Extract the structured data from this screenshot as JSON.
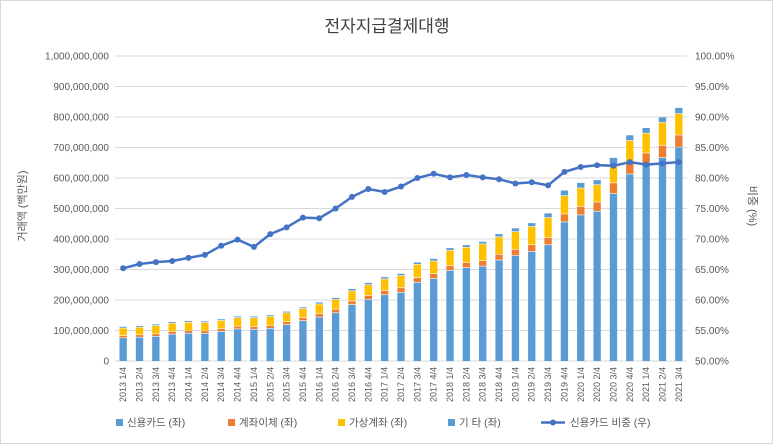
{
  "chart_data": {
    "type": "bar",
    "title": "전자지급결제대행",
    "ylabel": "거래액 (백만원)",
    "y2label": "비중 (%)",
    "ylim": [
      0,
      1000000000
    ],
    "y2lim": [
      50,
      100
    ],
    "grid": true,
    "legend_position": "bottom",
    "categories": [
      "2013 1/4",
      "2013 2/4",
      "2013 3/4",
      "2013 4/4",
      "2014 1/4",
      "2014 2/4",
      "2014 3/4",
      "2014 4/4",
      "2015 1/4",
      "2015 2/4",
      "2015 3/4",
      "2015 4/4",
      "2016 1/4",
      "2016 2/4",
      "2016 3/4",
      "2016 4/4",
      "2017 1/4",
      "2017 2/4",
      "2017 3/4",
      "2017 4/4",
      "2018 1/4",
      "2018 2/4",
      "2018 3/4",
      "2018 4/4",
      "2019 1/4",
      "2019 2/4",
      "2019 3/4",
      "2019 4/4",
      "2020 1/4",
      "2020 2/4",
      "2020 3/4",
      "2020 4/4",
      "2021 1/4",
      "2021 2/4",
      "2021 3/4"
    ],
    "series": [
      {
        "name": "신용카드 (좌)",
        "kind": "bar",
        "axis": "left",
        "color": "#5b9bd5",
        "values": [
          75000000,
          77000000,
          80000000,
          87000000,
          90000000,
          89000000,
          96000000,
          104000000,
          103000000,
          106000000,
          118000000,
          131000000,
          143000000,
          157000000,
          184000000,
          201000000,
          216000000,
          224000000,
          257000000,
          270000000,
          296000000,
          305000000,
          310000000,
          330000000,
          345000000,
          358000000,
          380000000,
          455000000,
          478000000,
          490000000,
          548000000,
          612000000,
          646000000,
          666000000,
          700000000
        ]
      },
      {
        "name": "계좌이체 (좌)",
        "kind": "bar",
        "axis": "left",
        "color": "#ed7d31",
        "values": [
          7000000,
          8000000,
          8000000,
          9000000,
          9000000,
          9000000,
          9000000,
          9000000,
          9000000,
          10000000,
          10000000,
          10000000,
          11000000,
          12000000,
          12000000,
          13000000,
          14000000,
          15000000,
          15000000,
          15000000,
          16000000,
          17000000,
          18000000,
          19000000,
          20000000,
          22000000,
          24000000,
          26000000,
          28000000,
          30000000,
          35000000,
          35000000,
          35000000,
          40000000,
          40000000
        ]
      },
      {
        "name": "가상계좌 (좌)",
        "kind": "bar",
        "axis": "left",
        "color": "#ffc000",
        "values": [
          25000000,
          25000000,
          27000000,
          27000000,
          27000000,
          27000000,
          27000000,
          28000000,
          29000000,
          29000000,
          29000000,
          30000000,
          32000000,
          32000000,
          33000000,
          35000000,
          38000000,
          40000000,
          44000000,
          42000000,
          50000000,
          50000000,
          55000000,
          57000000,
          58000000,
          60000000,
          65000000,
          60000000,
          60000000,
          57000000,
          55000000,
          75000000,
          65000000,
          75000000,
          70000000
        ]
      },
      {
        "name": "기 타 (좌)",
        "kind": "bar",
        "axis": "left",
        "color": "#5b9bd5",
        "values": [
          5000000,
          5000000,
          5000000,
          5000000,
          5000000,
          5000000,
          5000000,
          5000000,
          5000000,
          5000000,
          5000000,
          5000000,
          6000000,
          6000000,
          7000000,
          7000000,
          7000000,
          7000000,
          7000000,
          8000000,
          8000000,
          8000000,
          8000000,
          10000000,
          12000000,
          12000000,
          15000000,
          18000000,
          18000000,
          16000000,
          28000000,
          18000000,
          18000000,
          18000000,
          20000000
        ]
      },
      {
        "name": "신용카드 비중 (우)",
        "kind": "line",
        "axis": "right",
        "color": "#4472c4",
        "values": [
          65.2,
          65.9,
          66.2,
          66.4,
          66.9,
          67.4,
          68.9,
          69.9,
          68.7,
          70.8,
          71.9,
          73.5,
          73.4,
          75.0,
          76.9,
          78.2,
          77.7,
          78.6,
          80.0,
          80.7,
          80.1,
          80.5,
          80.1,
          79.8,
          79.1,
          79.3,
          78.8,
          81.0,
          81.8,
          82.1,
          82.0,
          82.6,
          82.2,
          82.4,
          82.6
        ]
      }
    ]
  }
}
